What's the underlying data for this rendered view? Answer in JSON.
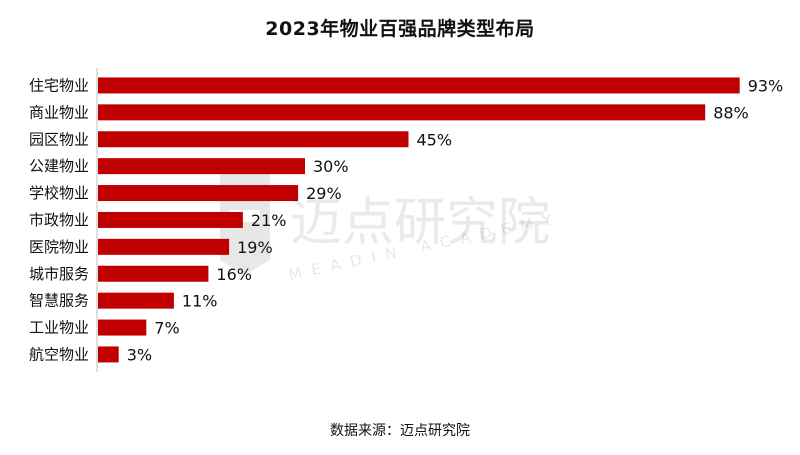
{
  "chart_data": {
    "type": "bar",
    "orientation": "horizontal",
    "title": "2023年物业百强品牌类型布局",
    "categories": [
      "住宅物业",
      "商业物业",
      "园区物业",
      "公建物业",
      "学校物业",
      "市政物业",
      "医院物业",
      "城市服务",
      "智慧服务",
      "工业物业",
      "航空物业"
    ],
    "values": [
      93,
      88,
      45,
      30,
      29,
      21,
      19,
      16,
      11,
      7,
      3
    ],
    "value_suffix": "%",
    "xlim": [
      0,
      100
    ],
    "grid": false,
    "bar_color": "#c00000"
  },
  "watermark": {
    "text_cn": "迈点研究院",
    "text_en": "MEADIN ACADEMY"
  },
  "source": "数据来源：迈点研究院"
}
